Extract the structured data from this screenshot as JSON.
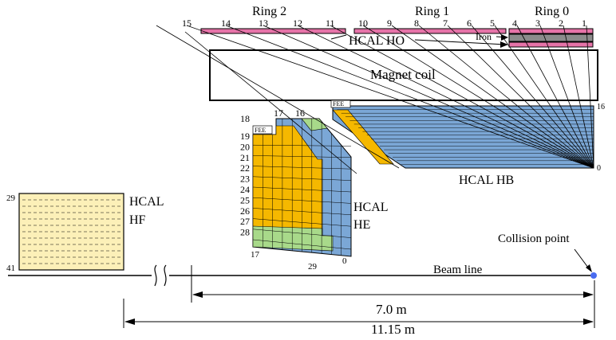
{
  "labels": {
    "ring2": "Ring 2",
    "ring1": "Ring 1",
    "ring0": "Ring 0",
    "hcal_ho": "HCAL  HO",
    "iron": "Iron",
    "magnet_coil": "Magnet coil",
    "fee_hb": "FEE",
    "fee_he": "FEE",
    "hcal_hb": "HCAL  HB",
    "hcal_he_1": "HCAL",
    "hcal_he_2": "HE",
    "hcal_hf_1": "HCAL",
    "hcal_hf_2": "HF",
    "collision_point": "Collision point",
    "beam_line": "Beam line",
    "dist_short": "7.0 m",
    "dist_long": "11.15 m"
  },
  "tower_numbers_top": [
    "15",
    "14",
    "13",
    "12",
    "11",
    "10",
    "9",
    "8",
    "7",
    "6",
    "5",
    "4",
    "3",
    "2",
    "1"
  ],
  "he_tower_numbers": [
    "18",
    "19",
    "20",
    "21",
    "22",
    "23",
    "24",
    "25",
    "26",
    "27",
    "28"
  ],
  "he_top_numbers": [
    "17",
    "16"
  ],
  "he_bottom_numbers": [
    "17",
    "29",
    "0"
  ],
  "hb_layer_labels": {
    "top": "16",
    "bottom": "0"
  },
  "hf_numbers": {
    "top": "29",
    "bottom": "41"
  },
  "colors": {
    "ho_pink": "#e673a8",
    "iron_gray": "#8c8c8c",
    "hb_blue": "#7ba7d6",
    "he_yellow": "#f5b800",
    "he_green": "#a8d98a",
    "hf_fill": "#fcf0b8",
    "collision_point": "#4a6cf0"
  }
}
